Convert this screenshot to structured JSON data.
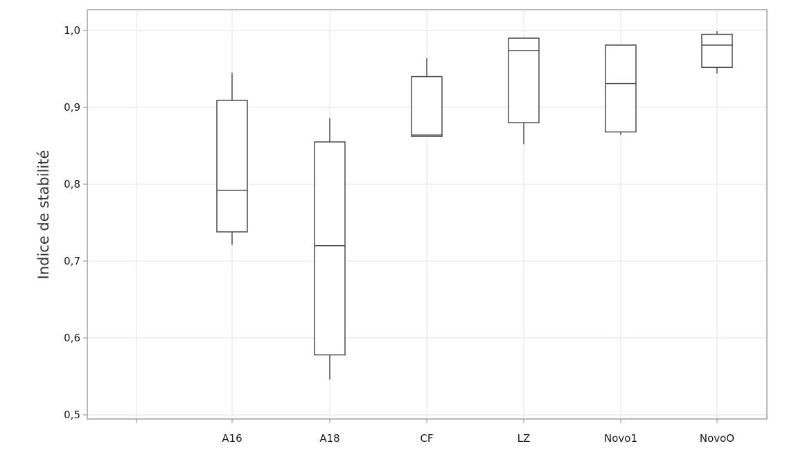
{
  "chart_data": {
    "type": "box",
    "title": "",
    "xlabel": "",
    "ylabel": "Indice de stabilité",
    "categories": [
      "",
      "A16",
      "A18",
      "CF",
      "LZ",
      "Novo1",
      "NovoO"
    ],
    "ylim": [
      0.5,
      1.02
    ],
    "yticks": [
      0.5,
      0.6,
      0.7,
      0.8,
      0.9,
      1.0
    ],
    "ytick_labels": [
      "0,5",
      "0,6",
      "0,7",
      "0,8",
      "0,9",
      "1,0"
    ],
    "grid": true,
    "boxes": [
      {
        "category": "A16",
        "whisker_low": 0.721,
        "q1": 0.738,
        "median": 0.792,
        "q3": 0.909,
        "whisker_high": 0.945
      },
      {
        "category": "A18",
        "whisker_low": 0.546,
        "q1": 0.578,
        "median": 0.72,
        "q3": 0.855,
        "whisker_high": 0.886
      },
      {
        "category": "CF",
        "whisker_low": 0.862,
        "q1": 0.862,
        "median": 0.864,
        "q3": 0.94,
        "whisker_high": 0.964
      },
      {
        "category": "LZ",
        "whisker_low": 0.852,
        "q1": 0.88,
        "median": 0.974,
        "q3": 0.99,
        "whisker_high": 0.99
      },
      {
        "category": "Novo1",
        "whisker_low": 0.864,
        "q1": 0.868,
        "median": 0.931,
        "q3": 0.981,
        "whisker_high": 0.981
      },
      {
        "category": "NovoO",
        "whisker_low": 0.944,
        "q1": 0.952,
        "median": 0.981,
        "q3": 0.995,
        "whisker_high": 0.999
      }
    ]
  },
  "colors": {
    "grid": "#e3e3e3",
    "frame": "#8c8c8c",
    "box_stroke": "#4a4a4a",
    "background": "#ffffff"
  }
}
